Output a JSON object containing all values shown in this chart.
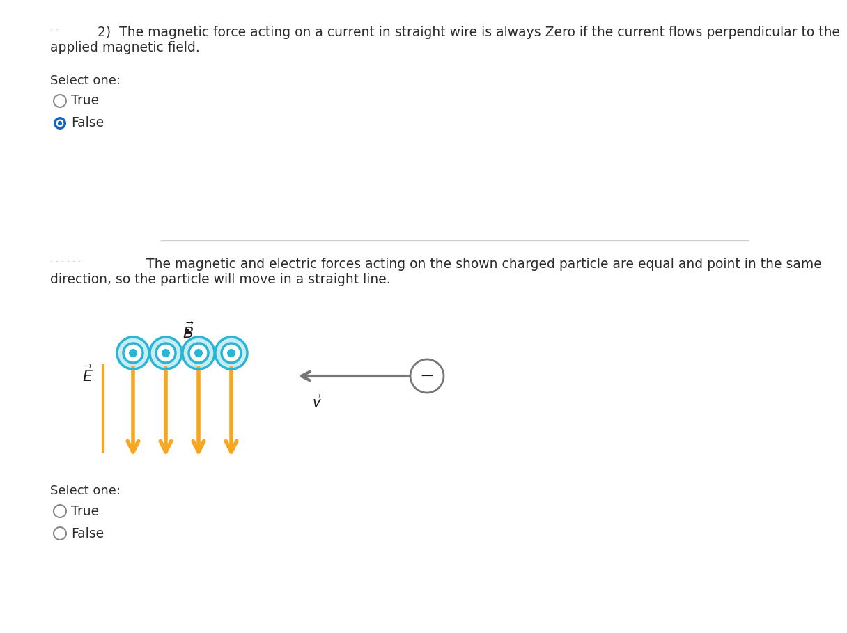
{
  "bg_color": "#ffffff",
  "text_color": "#2b2b2b",
  "orange_color": "#F5A623",
  "cyan_color": "#29B6D6",
  "cyan_fill": "#29B6D6",
  "gray_color": "#888888",
  "dark_color": "#1a1a1a",
  "divider_color": "#cccccc",
  "radio_blue": "#1565C0",
  "radio_gray": "#888888",
  "q1_line1": "2)  The magnetic force acting on a current in straight wire is always Zero if the current flows perpendicular to the",
  "q1_line2": "applied magnetic field.",
  "q1_select": "Select one:",
  "q1_true": "True",
  "q1_false": "False",
  "q2_line1": "The magnetic and electric forces acting on the shown charged particle are equal and point in the same",
  "q2_line2": "direction, so the particle will move in a straight line.",
  "q2_select": "Select one:",
  "q2_true": "True",
  "q2_false": "False",
  "font_size_main": 13.5,
  "font_size_radio": 13.5,
  "font_size_select": 13.0
}
